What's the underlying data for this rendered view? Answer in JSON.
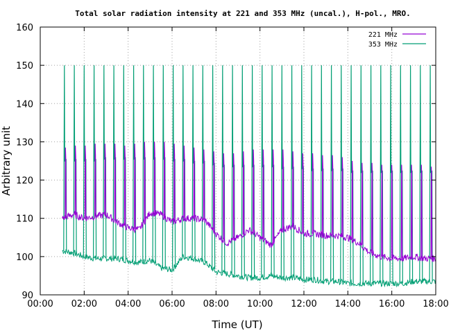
{
  "chart_data": {
    "type": "line",
    "title": "Total solar radiation intensity at 221 and 353 MHz (uncal.), H-pol., MRO.",
    "xlabel": "Time (UT)",
    "ylabel": "Arbitrary unit",
    "xlim": [
      "00:00",
      "18:00"
    ],
    "ylim": [
      90,
      160
    ],
    "x_ticks": [
      "00:00",
      "02:00",
      "04:00",
      "06:00",
      "08:00",
      "10:00",
      "12:00",
      "14:00",
      "16:00",
      "18:00"
    ],
    "y_ticks": [
      "90",
      "100",
      "110",
      "120",
      "130",
      "140",
      "150",
      "160"
    ],
    "grid": true,
    "legend_position": "top-right",
    "calibration_spikes": {
      "description_x_hours": [
        1.1,
        1.55,
        2.0,
        2.45,
        2.9,
        3.35,
        3.8,
        4.25,
        4.7,
        5.15,
        5.6,
        6.05,
        6.5,
        6.95,
        7.4,
        7.85,
        8.3,
        8.75,
        9.2,
        9.65,
        10.1,
        10.55,
        11.0,
        11.45,
        11.9,
        12.35,
        12.8,
        13.25,
        13.7,
        14.15,
        14.6,
        15.05,
        15.5,
        15.95,
        16.4,
        16.85,
        17.3,
        17.75
      ],
      "peak_221_mhz": [
        128.5,
        129,
        129,
        129.5,
        129.5,
        129.5,
        129,
        129.5,
        130,
        130,
        130,
        129.5,
        129,
        128.5,
        128,
        127.5,
        127,
        127,
        127.5,
        128,
        128,
        128,
        128,
        127.5,
        127,
        127,
        126.5,
        126.5,
        126,
        125,
        124.5,
        124.5,
        124,
        124,
        124,
        124,
        124,
        123.5
      ],
      "peak_353_mhz": 150,
      "shoulder_353_mhz": [
        125,
        125,
        125,
        125,
        125.5,
        125.5,
        125.5,
        125.5,
        125.5,
        125.5,
        125.5,
        125,
        125,
        124.5,
        124.5,
        124,
        123.5,
        123.5,
        123.5,
        123.5,
        123.5,
        123.5,
        123,
        123,
        123,
        122.5,
        122.5,
        122.5,
        122.5,
        122,
        122,
        122,
        122,
        122,
        122,
        122,
        122,
        122
      ]
    },
    "series": [
      {
        "name": "221 MHz",
        "color": "#9400d3",
        "x": [
          "01:00",
          "01:30",
          "02:00",
          "02:30",
          "03:00",
          "03:30",
          "04:00",
          "04:30",
          "05:00",
          "05:30",
          "06:00",
          "06:30",
          "07:00",
          "07:30",
          "08:00",
          "08:30",
          "09:00",
          "09:30",
          "10:00",
          "10:30",
          "11:00",
          "11:30",
          "12:00",
          "12:30",
          "13:00",
          "13:30",
          "14:00",
          "14:30",
          "15:00",
          "15:30",
          "16:00",
          "16:30",
          "17:00",
          "17:30",
          "18:00"
        ],
        "values": [
          110,
          111,
          110,
          110.5,
          111,
          109,
          107.5,
          107,
          111.5,
          111,
          109,
          110,
          110,
          109.5,
          106,
          103.5,
          105,
          107,
          105,
          103,
          107,
          108,
          106,
          106,
          105.5,
          105.5,
          105,
          103.5,
          101,
          100,
          99.5,
          99.5,
          100,
          99.5,
          99.5
        ]
      },
      {
        "name": "353 MHz",
        "color": "#009e73",
        "x": [
          "01:00",
          "01:30",
          "02:00",
          "02:30",
          "03:00",
          "03:30",
          "04:00",
          "04:30",
          "05:00",
          "05:30",
          "06:00",
          "06:30",
          "07:00",
          "07:30",
          "08:00",
          "08:30",
          "09:00",
          "09:30",
          "10:00",
          "10:30",
          "11:00",
          "11:30",
          "12:00",
          "12:30",
          "13:00",
          "13:30",
          "14:00",
          "14:30",
          "15:00",
          "15:30",
          "16:00",
          "16:30",
          "17:00",
          "17:30",
          "18:00"
        ],
        "values": [
          101.5,
          101,
          100,
          99.5,
          99.5,
          99.5,
          99,
          98.5,
          99,
          97,
          96.5,
          100,
          99.5,
          98.5,
          96,
          95.5,
          95,
          94.5,
          94.5,
          95,
          94.5,
          94.5,
          94,
          94,
          93.5,
          93.5,
          93,
          93,
          93,
          93,
          93,
          93,
          93.5,
          93.5,
          93.5
        ]
      }
    ]
  }
}
